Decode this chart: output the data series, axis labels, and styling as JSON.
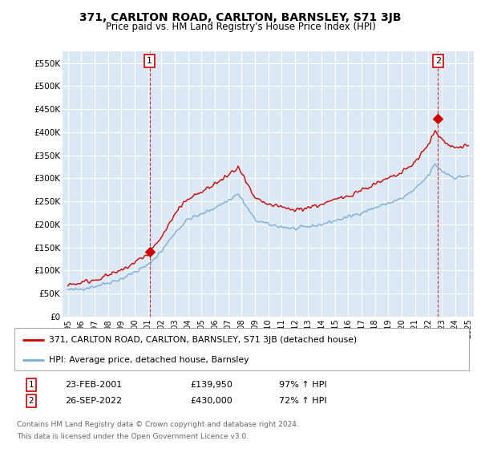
{
  "title": "371, CARLTON ROAD, CARLTON, BARNSLEY, S71 3JB",
  "subtitle": "Price paid vs. HM Land Registry's House Price Index (HPI)",
  "ylim": [
    0,
    575000
  ],
  "yticks": [
    0,
    50000,
    100000,
    150000,
    200000,
    250000,
    300000,
    350000,
    400000,
    450000,
    500000,
    550000
  ],
  "ytick_labels": [
    "£0",
    "£50K",
    "£100K",
    "£150K",
    "£200K",
    "£250K",
    "£300K",
    "£350K",
    "£400K",
    "£450K",
    "£500K",
    "£550K"
  ],
  "background_color": "#dce9f5",
  "legend_label_red": "371, CARLTON ROAD, CARLTON, BARNSLEY, S71 3JB (detached house)",
  "legend_label_blue": "HPI: Average price, detached house, Barnsley",
  "sale1_date": 2001.12,
  "sale1_price": 139950,
  "sale2_date": 2022.72,
  "sale2_price": 430000,
  "footer_line1": "Contains HM Land Registry data © Crown copyright and database right 2024.",
  "footer_line2": "This data is licensed under the Open Government Licence v3.0.",
  "table_row1": [
    "1",
    "23-FEB-2001",
    "£139,950",
    "97% ↑ HPI"
  ],
  "table_row2": [
    "2",
    "26-SEP-2022",
    "£430,000",
    "72% ↑ HPI"
  ],
  "red_color": "#cc0000",
  "blue_color": "#7bafd4",
  "vline_color": "#cc0000"
}
